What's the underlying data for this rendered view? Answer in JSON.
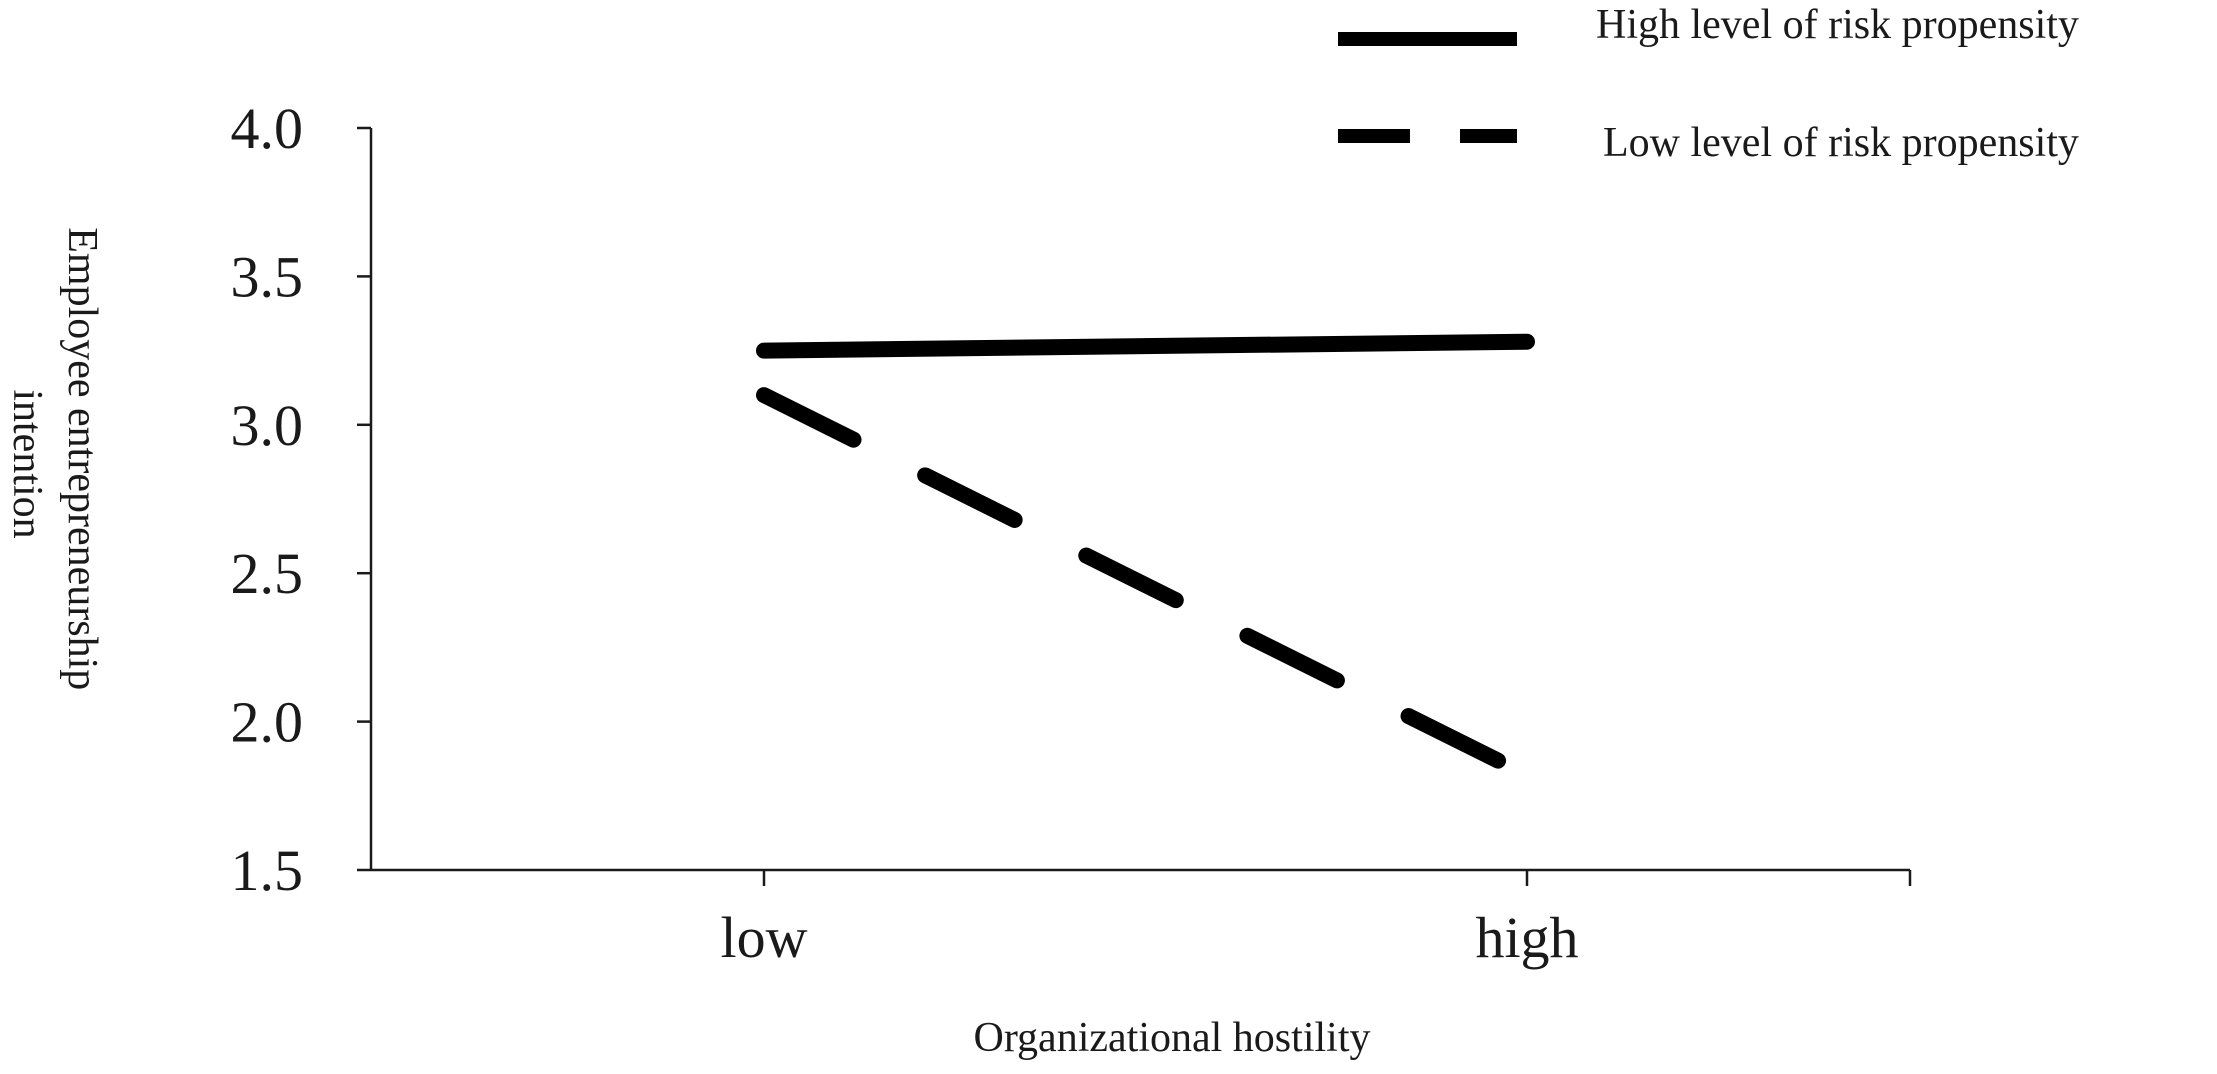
{
  "chart_data": {
    "type": "line",
    "categories": [
      "low",
      "high"
    ],
    "series": [
      {
        "name": "High level of risk propensity",
        "values": [
          3.25,
          3.28
        ],
        "style": "solid",
        "color": "#000000"
      },
      {
        "name": "Low level of risk propensity",
        "values": [
          3.1,
          1.82
        ],
        "style": "dashed",
        "color": "#000000"
      }
    ],
    "yticks": [
      "4.0",
      "3.5",
      "3.0",
      "2.5",
      "2.0",
      "1.5"
    ],
    "ylim": [
      1.5,
      4.0
    ],
    "xlabel": "Organizational hostility",
    "ylabel_lines": [
      "Employee entrepreneurship",
      "intention"
    ],
    "grid": false,
    "legend_position": "top-right"
  }
}
